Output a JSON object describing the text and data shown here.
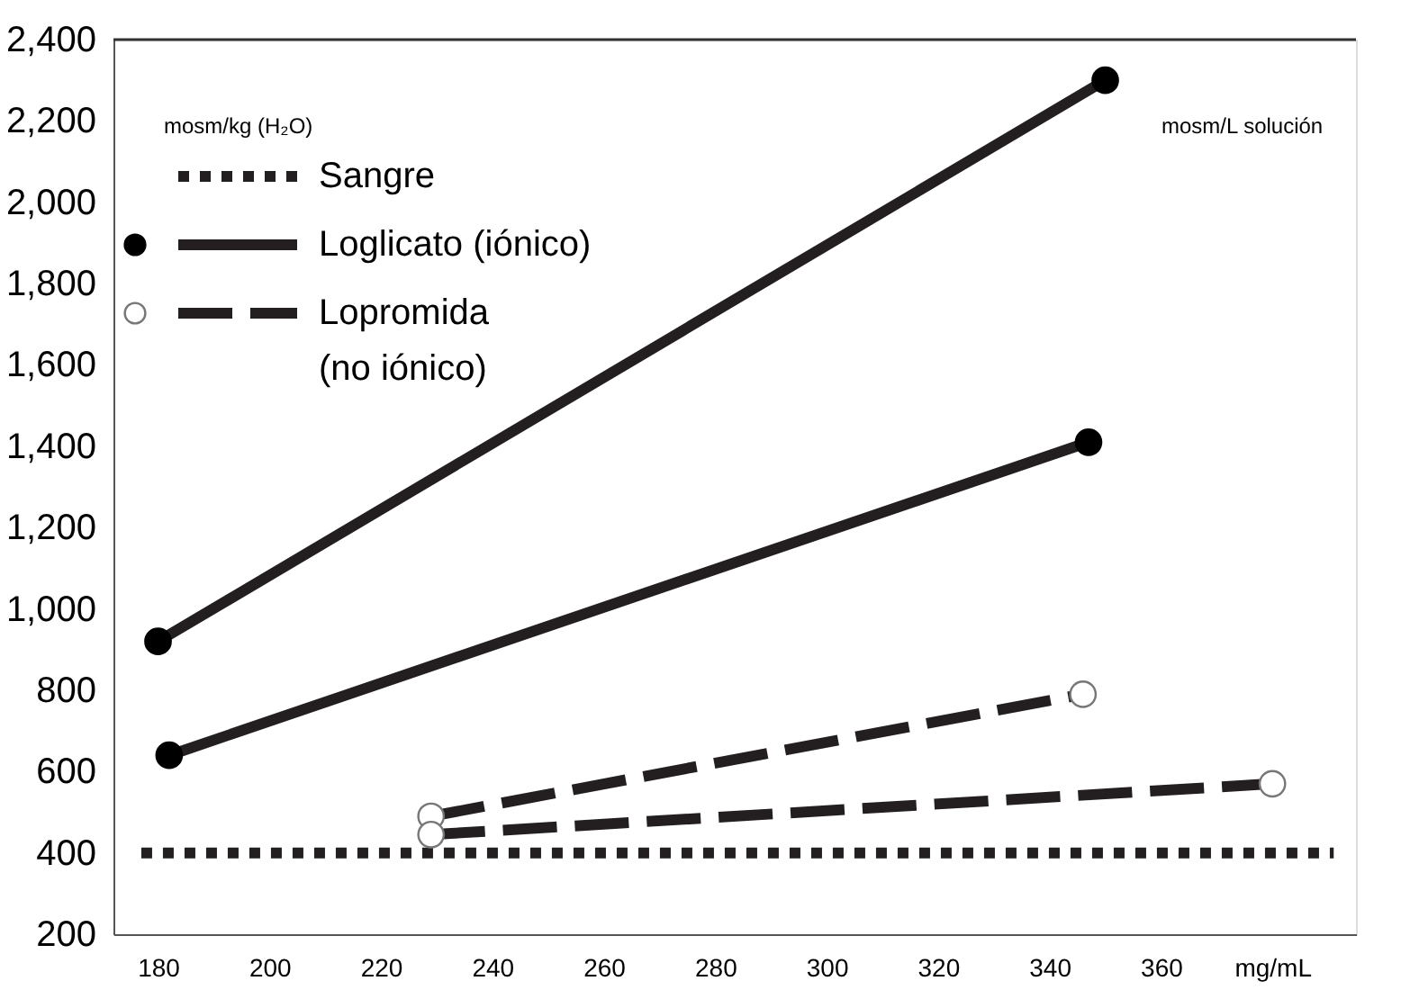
{
  "chart_data": {
    "type": "line",
    "annotations": [
      "mosm/kg (H₂O)",
      "mosm/L solución"
    ],
    "series": [
      {
        "name": "Sangre",
        "color": "#231f20",
        "x": [
          177,
          391
        ],
        "values": [
          400,
          400
        ],
        "line_style": "dotted",
        "marker": "none"
      },
      {
        "name": "Loglicato (iónico)",
        "color": "#231f20",
        "x": [
          180,
          350
        ],
        "values": [
          920,
          2300
        ],
        "line_style": "solid",
        "marker": "circle"
      },
      {
        "color": "#231f20",
        "x": [
          182,
          347
        ],
        "values": [
          640,
          1410
        ],
        "line_style": "solid",
        "marker": "circle"
      },
      {
        "name": "Lopromida (no iónico)",
        "color": "#231f20",
        "x": [
          229,
          346
        ],
        "values": [
          490,
          790
        ],
        "line_style": "dashed",
        "marker": "circle"
      },
      {
        "color": "#231f20",
        "x": [
          229,
          380
        ],
        "values": [
          445,
          570
        ],
        "line_style": "dashed",
        "marker": "circle"
      }
    ],
    "xlim": [
      172,
      395
    ],
    "xticks": [
      180,
      200,
      220,
      240,
      260,
      280,
      300,
      320,
      340,
      360,
      {
        "value": 380,
        "label": "mg/mL"
      }
    ],
    "ylim": [
      200,
      2400
    ],
    "yticks": [
      200,
      400,
      600,
      800,
      {
        "value": 1000,
        "label": "1,000"
      },
      {
        "value": 1200,
        "label": "1,200"
      },
      {
        "value": 1400,
        "label": "1,400"
      },
      {
        "value": 1600,
        "label": "1,600"
      },
      {
        "value": 1800,
        "label": "1,800"
      },
      {
        "value": 2000,
        "label": "2,000"
      },
      {
        "value": 2200,
        "label": "2,200"
      },
      {
        "value": 2400,
        "label": "2,400"
      }
    ],
    "grid": false,
    "legend": "top left"
  }
}
